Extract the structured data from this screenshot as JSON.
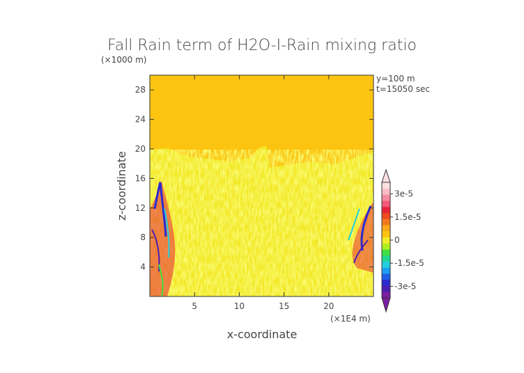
{
  "chart_data": {
    "type": "heatmap",
    "title": "Fall Rain term of H2O-I-Rain mixing ratio",
    "xlabel": "x-coordinate",
    "ylabel": "z-coordinate",
    "x_unit": "(×1E4 m)",
    "y_unit": "(×1000 m)",
    "xlim": [
      0,
      25
    ],
    "ylim": [
      0,
      30
    ],
    "x_ticks": [
      5,
      10,
      15,
      20
    ],
    "y_ticks": [
      4,
      8,
      12,
      16,
      20,
      24,
      28
    ],
    "annotations": [
      "y=100 m",
      "t=15050 sec"
    ],
    "colorbar": {
      "labels": [
        {
          "text": "3e-5",
          "value": 3e-05
        },
        {
          "text": "1.5e-5",
          "value": 1.5e-05
        },
        {
          "text": "0",
          "value": 0
        },
        {
          "text": "-1.5e-5",
          "value": -1.5e-05
        },
        {
          "text": "-3e-5",
          "value": -3e-05
        }
      ],
      "colors": [
        "#7a1fa0",
        "#4b1fb0",
        "#2a2ad0",
        "#1e5ee8",
        "#1e9ef0",
        "#20d0e0",
        "#20d890",
        "#40e040",
        "#b0f020",
        "#f2ec2a",
        "#fcc410",
        "#f9a81a",
        "#f07a1e",
        "#f04a20",
        "#e8243a",
        "#f25a7a",
        "#f58a9e",
        "#f9bcc6",
        "#fde0e2"
      ],
      "field_color": "#fcc410"
    }
  }
}
